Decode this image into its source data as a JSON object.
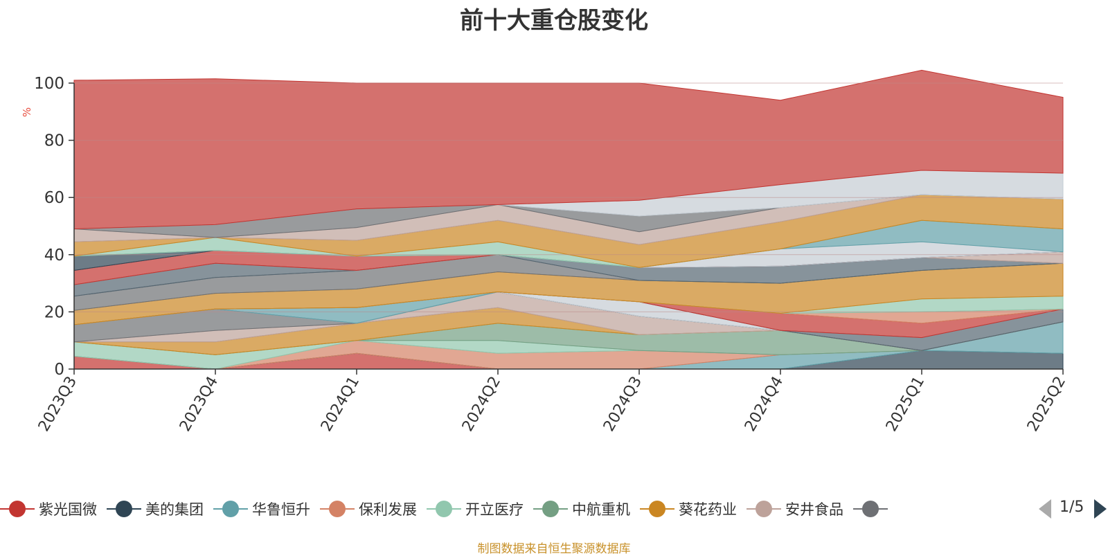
{
  "title": "前十大重仓股变化",
  "source": "制图数据来自恒生聚源数据库",
  "legend": {
    "items": [
      {
        "label": "紫光国微",
        "color": "#c23531"
      },
      {
        "label": "美的集团",
        "color": "#2f4554"
      },
      {
        "label": "华鲁恒升",
        "color": "#61a0a8"
      },
      {
        "label": "保利发展",
        "color": "#d48265"
      },
      {
        "label": "开立医疗",
        "color": "#91c7ae"
      },
      {
        "label": "中航重机",
        "color": "#749f83"
      },
      {
        "label": "葵花药业",
        "color": "#ca8622"
      },
      {
        "label": "安井食品",
        "color": "#bda29a"
      },
      {
        "label": "",
        "color": "#6e7074"
      }
    ],
    "page": "1/5"
  },
  "chart_data": {
    "type": "area",
    "stacked": true,
    "x": [
      "2023Q3",
      "2023Q4",
      "2024Q1",
      "2024Q2",
      "2024Q3",
      "2024Q4",
      "2025Q1",
      "2025Q2"
    ],
    "ylabel": "%",
    "ylim": [
      0,
      100
    ],
    "yticks": [
      0,
      20,
      40,
      60,
      80,
      100
    ],
    "grid": true,
    "legend_position": "bottom",
    "series": [
      {
        "color": "#c23531",
        "values": [
          4.5,
          0.0,
          5.5,
          0.0,
          0.0,
          0.0,
          0.0,
          0.0
        ]
      },
      {
        "color": "#2f4554",
        "values": [
          0.0,
          0.0,
          0.0,
          0.0,
          0.0,
          0.0,
          6.5,
          5.5
        ]
      },
      {
        "color": "#61a0a8",
        "values": [
          0.0,
          0.0,
          0.0,
          0.0,
          0.0,
          5.0,
          0.0,
          11.0
        ]
      },
      {
        "color": "#d48265",
        "values": [
          0.0,
          0.0,
          4.5,
          5.5,
          6.5,
          0.0,
          0.0,
          0.0
        ]
      },
      {
        "color": "#91c7ae",
        "values": [
          5.0,
          5.0,
          0.0,
          4.5,
          0.0,
          0.0,
          0.0,
          0.0
        ]
      },
      {
        "color": "#749f83",
        "values": [
          0.0,
          0.0,
          0.0,
          6.0,
          5.5,
          8.5,
          0.0,
          0.0
        ]
      },
      {
        "color": "#ca8622",
        "values": [
          0.0,
          4.5,
          6.0,
          5.5,
          0.0,
          0.0,
          0.0,
          0.0
        ]
      },
      {
        "color": "#bda29a",
        "values": [
          0.0,
          4.0,
          0.0,
          5.5,
          6.5,
          0.0,
          0.0,
          0.0
        ]
      },
      {
        "color": "#6e7074",
        "values": [
          6.0,
          7.5,
          0.0,
          0.0,
          0.0,
          0.0,
          0.0,
          0.0
        ]
      },
      {
        "color": "#546570",
        "values": [
          0.0,
          0.0,
          0.0,
          0.0,
          0.0,
          0.0,
          4.5,
          4.5
        ]
      },
      {
        "color": "#c4ccd3",
        "values": [
          0.0,
          0.0,
          0.0,
          0.0,
          5.0,
          0.0,
          0.0,
          0.0
        ]
      },
      {
        "color": "#61a0a8",
        "values": [
          0.0,
          0.0,
          5.5,
          0.0,
          0.0,
          0.0,
          0.0,
          0.0
        ]
      },
      {
        "color": "#c23531",
        "values": [
          0.0,
          0.0,
          0.0,
          0.0,
          0.0,
          6.0,
          5.0,
          0.0
        ]
      },
      {
        "color": "#d48265",
        "values": [
          0.0,
          0.0,
          0.0,
          0.0,
          0.0,
          0.0,
          4.0,
          0.0
        ]
      },
      {
        "color": "#91c7ae",
        "values": [
          0.0,
          0.0,
          0.0,
          0.0,
          0.0,
          0.0,
          4.5,
          4.5
        ]
      },
      {
        "color": "#ca8622",
        "values": [
          5.0,
          5.5,
          6.5,
          7.0,
          7.5,
          10.5,
          10.0,
          11.5
        ]
      },
      {
        "color": "#6e7074",
        "values": [
          5.0,
          5.5,
          6.5,
          6.0,
          0.0,
          0.0,
          0.0,
          0.0
        ]
      },
      {
        "color": "#546570",
        "values": [
          4.0,
          5.0,
          0.0,
          0.0,
          4.5,
          6.0,
          4.5,
          0.0
        ]
      },
      {
        "color": "#bda29a",
        "values": [
          0.0,
          0.0,
          0.0,
          0.0,
          0.0,
          0.0,
          0.0,
          4.0
        ]
      },
      {
        "color": "#c23531",
        "values": [
          5.0,
          4.5,
          5.0,
          0.0,
          0.0,
          0.0,
          0.0,
          0.0
        ]
      },
      {
        "color": "#2f4554",
        "values": [
          5.0,
          0.0,
          0.0,
          0.0,
          0.0,
          0.0,
          0.0,
          0.0
        ]
      },
      {
        "color": "#c4ccd3",
        "values": [
          0.0,
          0.0,
          0.0,
          0.0,
          0.0,
          6.0,
          5.5,
          0.0
        ]
      },
      {
        "color": "#61a0a8",
        "values": [
          0.0,
          0.0,
          0.0,
          0.0,
          0.0,
          0.0,
          7.5,
          8.0
        ]
      },
      {
        "color": "#91c7ae",
        "values": [
          0.0,
          4.5,
          0.0,
          4.5,
          0.0,
          0.0,
          0.0,
          0.0
        ]
      },
      {
        "color": "#ca8622",
        "values": [
          5.0,
          0.0,
          5.5,
          7.5,
          8.0,
          9.5,
          9.0,
          10.5
        ]
      },
      {
        "color": "#bda29a",
        "values": [
          4.5,
          0.0,
          4.5,
          5.5,
          4.5,
          5.0,
          0.0,
          0.0
        ]
      },
      {
        "color": "#6e7074",
        "values": [
          0.0,
          4.5,
          6.5,
          0.0,
          5.5,
          0.0,
          0.0,
          0.0
        ]
      },
      {
        "color": "#c4ccd3",
        "values": [
          0.0,
          0.0,
          0.0,
          0.0,
          5.5,
          8.0,
          8.5,
          9.0
        ]
      },
      {
        "color": "#c23531",
        "values": [
          52.0,
          51.0,
          44.0,
          42.5,
          41.0,
          29.5,
          35.0,
          26.5
        ]
      }
    ]
  }
}
